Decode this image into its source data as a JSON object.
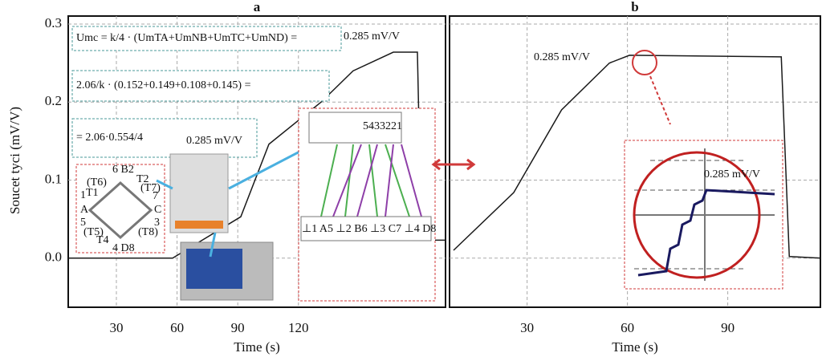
{
  "chart_data": [
    {
      "type": "line",
      "title": "a",
      "ylabel": "Soucet tyci (mV/V)",
      "xlabel": "Time (s)",
      "x": [
        6.2,
        57.8,
        91.5,
        105.4,
        131.2,
        147,
        166.9,
        178.8,
        180.8,
        192.7
      ],
      "series": [
        {
          "color": "#1a1a1a",
          "values": [
            0.0,
            0.0,
            0.053,
            0.146,
            0.2,
            0.24,
            0.264,
            0.264,
            0.023,
            0.023
          ]
        }
      ],
      "xlim": [
        6.2,
        192.7
      ],
      "ylim": [
        -0.063,
        0.3
      ],
      "xticks": [
        30,
        60,
        90,
        120
      ],
      "yticks": [
        {
          "value": 0.0,
          "label": "0.0"
        },
        0.1,
        0.2,
        0.3
      ],
      "grid": true,
      "annotations": [
        "Umc = k/4 · (UmTA+UmNB+UmTC+UmND) =",
        "0.285 mV/V",
        "2.06/k · (0.152+0.149+0.108+0.145) =",
        "= 2.06·0.554/4",
        "0.285 mV/V",
        "5433221",
        "⊥1 A5 ⊥2 B6 ⊥3 C7 ⊥4 D8",
        "(T6)",
        "6 B2",
        "T2",
        "1",
        "T1",
        "(T7)",
        "A",
        "C",
        "7",
        "5",
        "3",
        "(T5)",
        "(T8)",
        "T4",
        "4 D8"
      ]
    },
    {
      "type": "line",
      "title": "b",
      "xlabel": "Time (s)",
      "x": [
        8,
        26,
        40.3,
        54.6,
        60.6,
        106,
        108.4,
        117.7
      ],
      "series": [
        {
          "color": "#1a1a1a",
          "values": [
            0.01,
            0.084,
            0.19,
            0.25,
            0.26,
            0.258,
            0.002,
            0.0
          ]
        }
      ],
      "xlim": [
        6.8,
        117.7
      ],
      "ylim": [
        -0.063,
        0.3
      ],
      "xticks": [
        30,
        60,
        90
      ],
      "grid": true,
      "annotations": [
        "0.285 mV/V",
        "0.285 mV/V"
      ]
    }
  ]
}
